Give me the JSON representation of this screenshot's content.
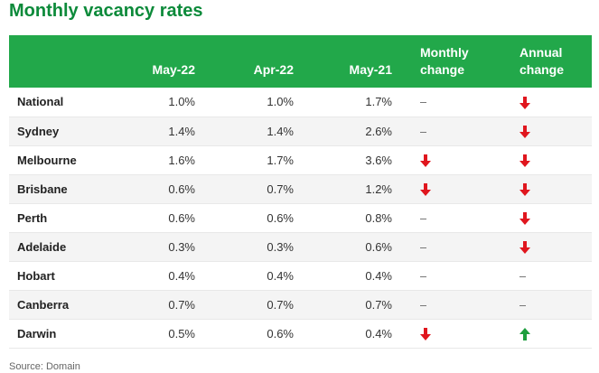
{
  "title": "Monthly vacancy rates",
  "columns": {
    "city": "",
    "may22": "May-22",
    "apr22": "Apr-22",
    "may21": "May-21",
    "monthly_line1": "Monthly",
    "monthly_line2": "change",
    "annual_line1": "Annual",
    "annual_line2": "change"
  },
  "colors": {
    "down": "#e0161e",
    "up": "#1e9e3e",
    "header": "#22a84a",
    "title": "#0c8a3a"
  },
  "rows": [
    {
      "city": "National",
      "may22": "1.0%",
      "apr22": "1.0%",
      "may21": "1.7%",
      "monthly": "none",
      "annual": "down"
    },
    {
      "city": "Sydney",
      "may22": "1.4%",
      "apr22": "1.4%",
      "may21": "2.6%",
      "monthly": "none",
      "annual": "down"
    },
    {
      "city": "Melbourne",
      "may22": "1.6%",
      "apr22": "1.7%",
      "may21": "3.6%",
      "monthly": "down",
      "annual": "down"
    },
    {
      "city": "Brisbane",
      "may22": "0.6%",
      "apr22": "0.7%",
      "may21": "1.2%",
      "monthly": "down",
      "annual": "down"
    },
    {
      "city": "Perth",
      "may22": "0.6%",
      "apr22": "0.6%",
      "may21": "0.8%",
      "monthly": "none",
      "annual": "down"
    },
    {
      "city": "Adelaide",
      "may22": "0.3%",
      "apr22": "0.3%",
      "may21": "0.6%",
      "monthly": "none",
      "annual": "down"
    },
    {
      "city": "Hobart",
      "may22": "0.4%",
      "apr22": "0.4%",
      "may21": "0.4%",
      "monthly": "none",
      "annual": "none"
    },
    {
      "city": "Canberra",
      "may22": "0.7%",
      "apr22": "0.7%",
      "may21": "0.7%",
      "monthly": "none",
      "annual": "none"
    },
    {
      "city": "Darwin",
      "may22": "0.5%",
      "apr22": "0.6%",
      "may21": "0.4%",
      "monthly": "down",
      "annual": "up"
    }
  ],
  "source": "Source: Domain"
}
